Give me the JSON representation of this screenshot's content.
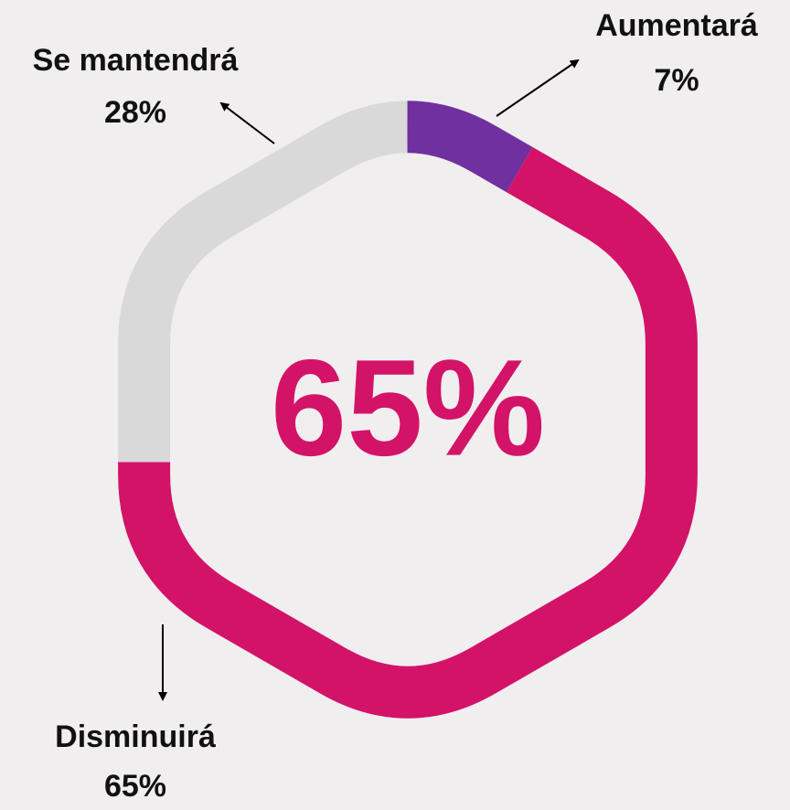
{
  "chart_data": {
    "type": "donut",
    "categories": [
      "Aumentará",
      "Disminuirá",
      "Se mantendrá"
    ],
    "values": [
      7,
      65,
      28
    ],
    "value_labels": [
      "7%",
      "65%",
      "28%"
    ],
    "colors": [
      "#7030a0",
      "#d31367",
      "#d9d9d9"
    ],
    "center_label": "65%"
  }
}
